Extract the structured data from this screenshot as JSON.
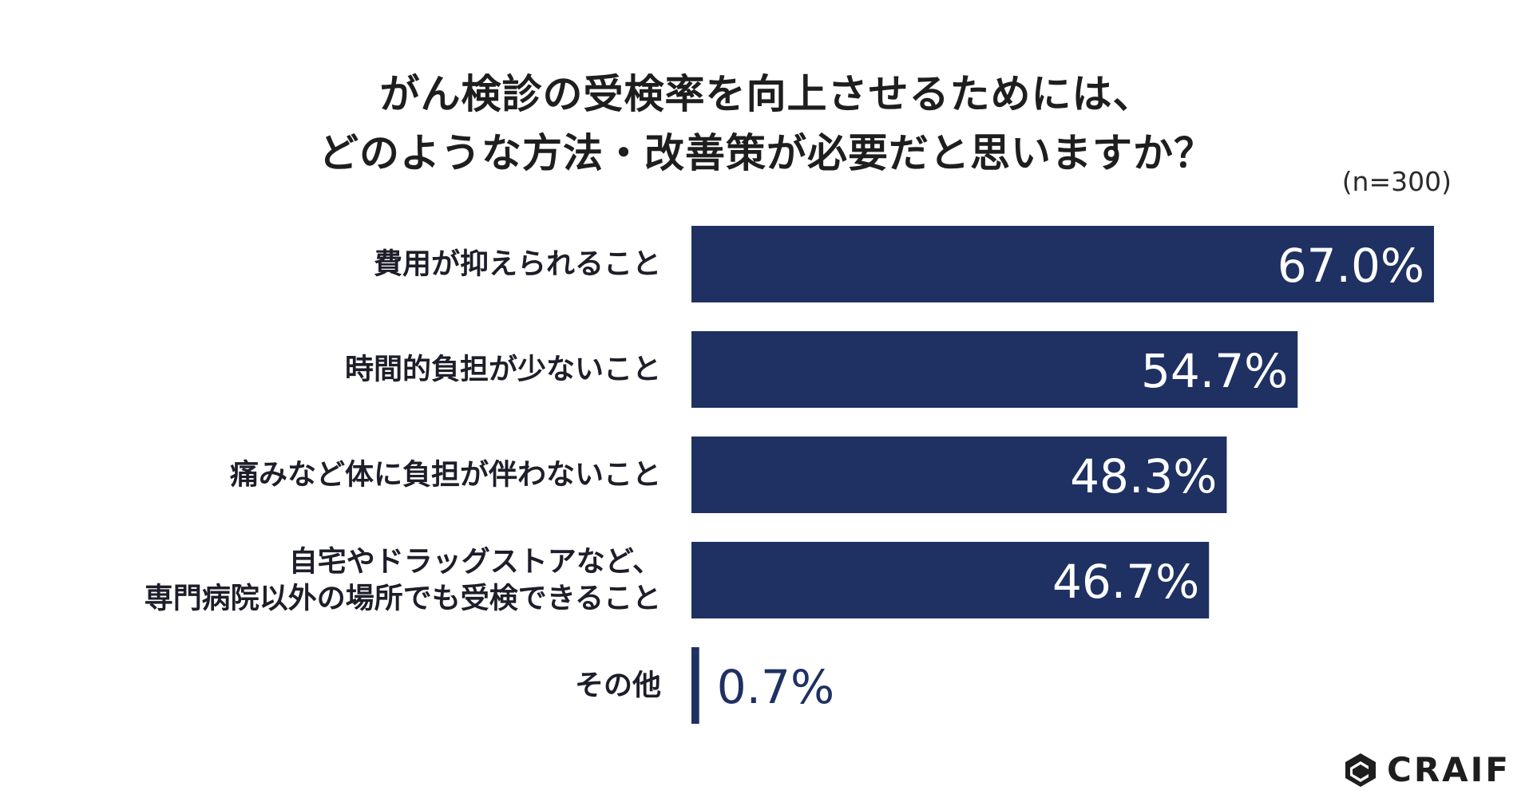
{
  "chart_data": {
    "type": "bar",
    "orientation": "horizontal",
    "title_lines": [
      "がん検診の受検率を向上させるためには、",
      "どのような方法・改善策が必要だと思いますか？"
    ],
    "sample_size": "(n=300)",
    "categories": [
      [
        "費用が抑えられること"
      ],
      [
        "時間的負担が少ないこと"
      ],
      [
        "痛みなど体に負担が伴わないこと"
      ],
      [
        "自宅やドラッグストアなど、",
        "専門病院以外の場所でも受検できること"
      ],
      [
        "その他"
      ]
    ],
    "values": [
      67.0,
      54.7,
      48.3,
      46.7,
      0.7
    ],
    "value_labels": [
      "67.0%",
      "54.7%",
      "48.3%",
      "46.7%",
      "0.7%"
    ],
    "unit": "%",
    "xlim": [
      0,
      67.0
    ],
    "grid": false,
    "legend": "none",
    "bar_color": "#1f3162",
    "label_color": "#1f3162",
    "inside_label_color": "#ffffff"
  },
  "brand": {
    "name": "CRAIF",
    "icon": "craif-logo-icon"
  }
}
